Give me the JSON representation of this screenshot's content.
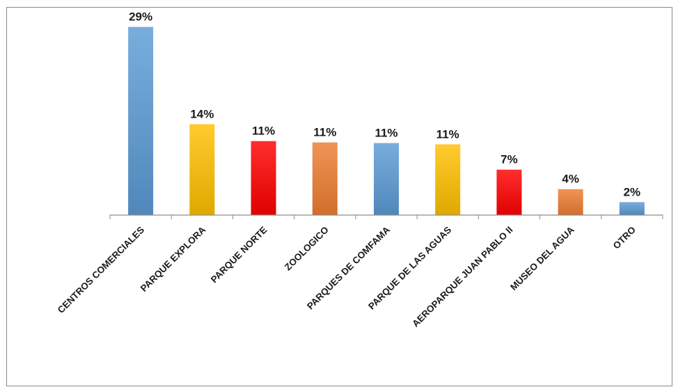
{
  "chart_data": {
    "type": "bar",
    "title": "",
    "xlabel": "",
    "ylabel": "",
    "ylim": [
      0,
      31
    ],
    "grid": false,
    "legend": "none",
    "categories": [
      "CENTROS COMERCIALES",
      "PARQUE EXPLORA",
      "PARQUE NORTE",
      "ZOOLOGICO",
      "PARQUES DE COMFAMA",
      "PARQUE DE LAS AGUAS",
      "AEROPARQUE JUAN PABLO II",
      "MUSEO DEL AGUA",
      "OTRO"
    ],
    "values": [
      29,
      14,
      11.4,
      11.2,
      11.1,
      10.9,
      7,
      4,
      2
    ],
    "value_labels": [
      "29%",
      "14%",
      "11%",
      "11%",
      "11%",
      "11%",
      "7%",
      "4%",
      "2%"
    ],
    "colors": [
      "#5b9bd5",
      "#ffc000",
      "#ff0000",
      "#ed7d31",
      "#5b9bd5",
      "#ffc000",
      "#ff0000",
      "#ed7d31",
      "#5b9bd5"
    ]
  }
}
